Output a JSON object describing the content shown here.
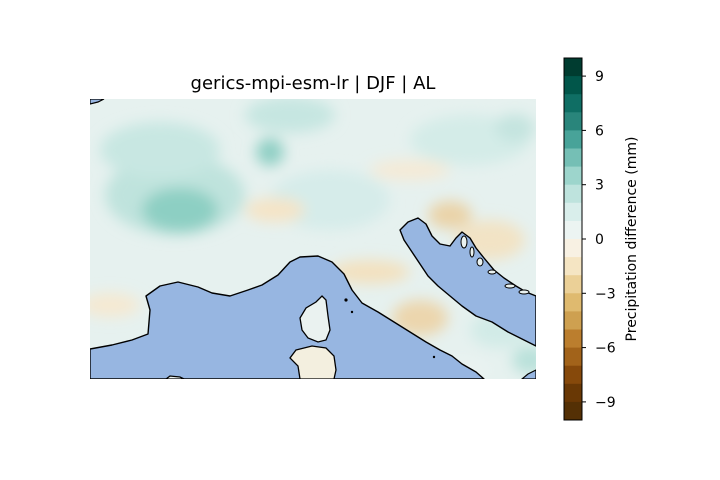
{
  "chart_data": {
    "type": "heatmap",
    "title": "gerics-mpi-esm-lr | DJF | AL",
    "projection": "PlateCarree",
    "region_extent_lon_lat": [
      1.0,
      17.5,
      37.0,
      47.5
    ],
    "colormap": "BrBG",
    "colorbar": {
      "label": "Precipitation difference (mm)",
      "vmin": -10,
      "vmax": 10,
      "levels": 20,
      "ticks": [
        9,
        6,
        3,
        0,
        -3,
        -6,
        -9
      ],
      "tick_labels": [
        "9",
        "6",
        "3",
        "0",
        "−3",
        "−6",
        "−9"
      ],
      "colors": [
        "#003c30",
        "#01564a",
        "#0f6e64",
        "#29857b",
        "#48a399",
        "#75bfb5",
        "#9dd5cc",
        "#bee3dd",
        "#d9eeeb",
        "#ecf4f2",
        "#f8f1e3",
        "#f5e5c3",
        "#ebd097",
        "#dfba6f",
        "#cea050",
        "#bb7e2e",
        "#a2631a",
        "#86490b",
        "#693805",
        "#543005"
      ]
    },
    "ocean_color": "#97b6e1",
    "coastline_color": "#000000"
  }
}
